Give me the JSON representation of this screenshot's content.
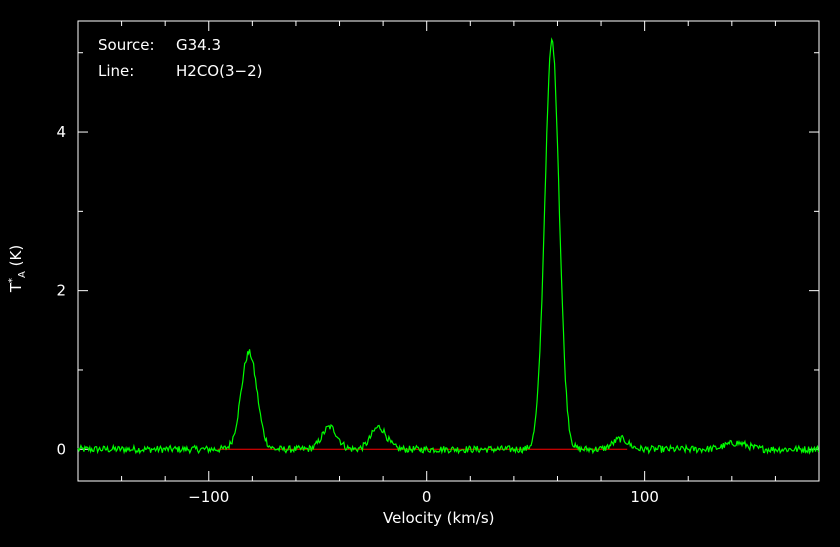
{
  "chart_data": {
    "type": "line",
    "title": "",
    "annotations": [
      {
        "key": "Source:",
        "value": "G34.3"
      },
      {
        "key": "Line:",
        "value": "H2CO(3−2)"
      }
    ],
    "xlabel": "Velocity (km/s)",
    "ylabel_main": "T",
    "ylabel_sup": "*",
    "ylabel_sub": "A",
    "ylabel_unit": "(K)",
    "xlim": [
      -160,
      180
    ],
    "ylim": [
      -0.4,
      5.4
    ],
    "xticks": [
      -100,
      0,
      100
    ],
    "xtick_labels": [
      "−100",
      "0",
      "100"
    ],
    "yticks": [
      0,
      2,
      4
    ],
    "ytick_labels": [
      "0",
      "2",
      "4"
    ],
    "baseline": {
      "y": 0,
      "x_range": [
        -96,
        92
      ],
      "color": "#ff0000"
    },
    "series": [
      {
        "color": "#00ff00",
        "peaks": [
          {
            "center": -81.5,
            "height": 1.22
          },
          {
            "center": -44.5,
            "height": 0.28
          },
          {
            "center": -22,
            "height": 0.28
          },
          {
            "center": 57.5,
            "height": 5.15
          },
          {
            "center": 89,
            "height": 0.13
          },
          {
            "center": 142,
            "height": 0.08
          }
        ]
      }
    ]
  }
}
